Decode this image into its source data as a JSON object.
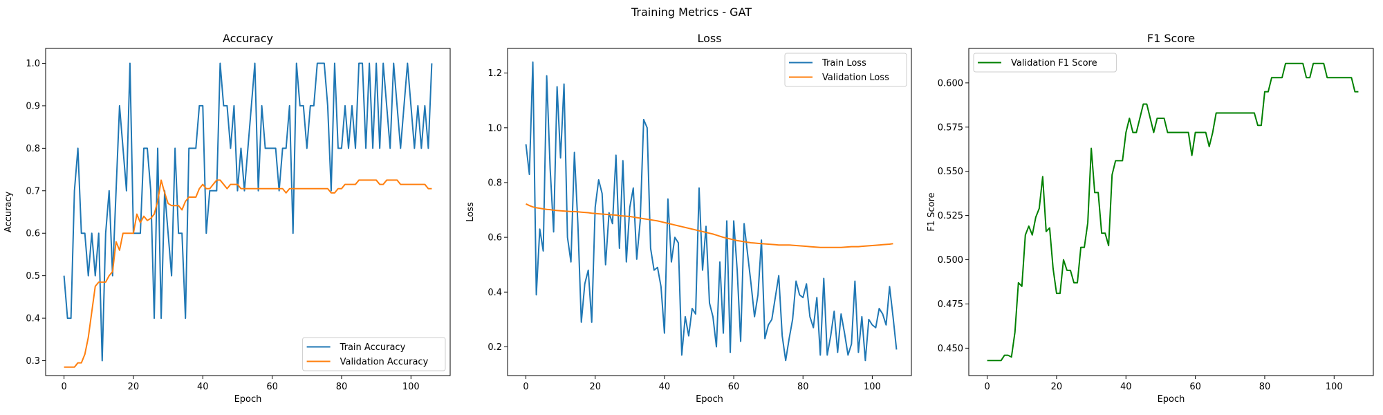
{
  "figure": {
    "title": "Training Metrics - GAT"
  },
  "colors": {
    "train": "#1f77b4",
    "validation": "#ff7f0e",
    "f1": "#008000"
  },
  "chart_data": [
    {
      "type": "line",
      "title": "Accuracy",
      "xlabel": "Epoch",
      "ylabel": "Accuracy",
      "xlim": [
        -5.3,
        111.3
      ],
      "ylim": [
        0.265,
        1.035
      ],
      "xticks": [
        0,
        20,
        40,
        60,
        80,
        100
      ],
      "yticks": [
        0.3,
        0.4,
        0.5,
        0.6,
        0.7,
        0.8,
        0.9,
        1.0
      ],
      "legend": "lower-right",
      "series": [
        {
          "name": "Train Accuracy",
          "color": "#1f77b4",
          "values": [
            0.5,
            0.4,
            0.4,
            0.7,
            0.8,
            0.6,
            0.6,
            0.5,
            0.6,
            0.5,
            0.6,
            0.3,
            0.6,
            0.7,
            0.5,
            0.7,
            0.9,
            0.8,
            0.7,
            1.0,
            0.6,
            0.6,
            0.6,
            0.8,
            0.8,
            0.7,
            0.4,
            0.8,
            0.4,
            0.7,
            0.6,
            0.5,
            0.8,
            0.6,
            0.6,
            0.4,
            0.8,
            0.8,
            0.8,
            0.9,
            0.9,
            0.6,
            0.7,
            0.7,
            0.7,
            1.0,
            0.9,
            0.9,
            0.8,
            0.9,
            0.7,
            0.8,
            0.7,
            0.8,
            0.9,
            1.0,
            0.7,
            0.9,
            0.8,
            0.8,
            0.8,
            0.8,
            0.7,
            0.8,
            0.8,
            0.9,
            0.6,
            1.0,
            0.9,
            0.9,
            0.8,
            0.9,
            0.9,
            1.0,
            1.0,
            1.0,
            0.9,
            0.7,
            1.0,
            0.8,
            0.8,
            0.9,
            0.8,
            0.9,
            0.8,
            1.0,
            1.0,
            0.8,
            1.0,
            0.8,
            1.0,
            0.8,
            1.0,
            0.9,
            0.8,
            1.0,
            0.9,
            0.8,
            0.9,
            1.0,
            0.9,
            0.8,
            0.9,
            0.8,
            0.9,
            0.8,
            1.0
          ]
        },
        {
          "name": "Validation Accuracy",
          "color": "#ff7f0e",
          "values": [
            0.285,
            0.285,
            0.285,
            0.285,
            0.295,
            0.295,
            0.315,
            0.355,
            0.415,
            0.475,
            0.485,
            0.485,
            0.485,
            0.5,
            0.51,
            0.58,
            0.56,
            0.6,
            0.6,
            0.6,
            0.6,
            0.645,
            0.625,
            0.64,
            0.63,
            0.635,
            0.645,
            0.675,
            0.725,
            0.695,
            0.67,
            0.665,
            0.665,
            0.665,
            0.655,
            0.675,
            0.685,
            0.685,
            0.685,
            0.705,
            0.715,
            0.705,
            0.705,
            0.715,
            0.725,
            0.725,
            0.715,
            0.705,
            0.715,
            0.715,
            0.715,
            0.705,
            0.705,
            0.705,
            0.705,
            0.705,
            0.705,
            0.705,
            0.705,
            0.705,
            0.705,
            0.705,
            0.705,
            0.705,
            0.695,
            0.705,
            0.705,
            0.705,
            0.705,
            0.705,
            0.705,
            0.705,
            0.705,
            0.705,
            0.705,
            0.705,
            0.705,
            0.695,
            0.695,
            0.705,
            0.705,
            0.715,
            0.715,
            0.715,
            0.715,
            0.725,
            0.725,
            0.725,
            0.725,
            0.725,
            0.725,
            0.715,
            0.715,
            0.725,
            0.725,
            0.725,
            0.725,
            0.715,
            0.715,
            0.715,
            0.715,
            0.715,
            0.715,
            0.715,
            0.715,
            0.705,
            0.705
          ]
        }
      ]
    },
    {
      "type": "line",
      "title": "Loss",
      "xlabel": "Epoch",
      "ylabel": "Loss",
      "xlim": [
        -5.3,
        111.3
      ],
      "ylim": [
        0.095,
        1.29
      ],
      "xticks": [
        0,
        20,
        40,
        60,
        80,
        100
      ],
      "yticks": [
        0.2,
        0.4,
        0.6,
        0.8,
        1.0,
        1.2
      ],
      "legend": "top-right",
      "series": [
        {
          "name": "Train Loss",
          "color": "#1f77b4",
          "values": [
            0.94,
            0.83,
            1.24,
            0.39,
            0.63,
            0.55,
            1.19,
            0.85,
            0.62,
            1.15,
            0.89,
            1.16,
            0.6,
            0.51,
            0.91,
            0.65,
            0.29,
            0.43,
            0.48,
            0.29,
            0.71,
            0.81,
            0.76,
            0.5,
            0.69,
            0.65,
            0.9,
            0.56,
            0.88,
            0.51,
            0.71,
            0.78,
            0.52,
            0.66,
            1.03,
            1.0,
            0.56,
            0.48,
            0.49,
            0.42,
            0.25,
            0.74,
            0.51,
            0.6,
            0.58,
            0.17,
            0.31,
            0.24,
            0.34,
            0.32,
            0.78,
            0.48,
            0.64,
            0.36,
            0.31,
            0.2,
            0.51,
            0.25,
            0.66,
            0.18,
            0.66,
            0.48,
            0.22,
            0.65,
            0.54,
            0.43,
            0.31,
            0.39,
            0.59,
            0.23,
            0.28,
            0.3,
            0.38,
            0.46,
            0.24,
            0.15,
            0.23,
            0.3,
            0.44,
            0.39,
            0.38,
            0.43,
            0.31,
            0.27,
            0.38,
            0.17,
            0.45,
            0.17,
            0.24,
            0.33,
            0.18,
            0.32,
            0.25,
            0.17,
            0.21,
            0.44,
            0.18,
            0.31,
            0.15,
            0.3,
            0.28,
            0.27,
            0.34,
            0.32,
            0.28,
            0.42,
            0.31,
            0.19
          ]
        },
        {
          "name": "Validation Loss",
          "color": "#ff7f0e",
          "values": [
            0.722,
            0.716,
            0.711,
            0.708,
            0.706,
            0.704,
            0.702,
            0.701,
            0.699,
            0.698,
            0.697,
            0.696,
            0.695,
            0.694,
            0.694,
            0.693,
            0.692,
            0.691,
            0.69,
            0.688,
            0.687,
            0.686,
            0.685,
            0.684,
            0.683,
            0.682,
            0.681,
            0.679,
            0.678,
            0.677,
            0.676,
            0.674,
            0.672,
            0.67,
            0.668,
            0.666,
            0.664,
            0.662,
            0.66,
            0.657,
            0.654,
            0.651,
            0.648,
            0.645,
            0.642,
            0.639,
            0.636,
            0.633,
            0.63,
            0.627,
            0.624,
            0.621,
            0.618,
            0.615,
            0.612,
            0.608,
            0.604,
            0.6,
            0.597,
            0.594,
            0.591,
            0.588,
            0.586,
            0.584,
            0.582,
            0.58,
            0.579,
            0.578,
            0.577,
            0.576,
            0.575,
            0.574,
            0.573,
            0.572,
            0.572,
            0.572,
            0.572,
            0.571,
            0.57,
            0.569,
            0.568,
            0.567,
            0.566,
            0.565,
            0.564,
            0.563,
            0.563,
            0.563,
            0.563,
            0.563,
            0.563,
            0.563,
            0.564,
            0.565,
            0.566,
            0.566,
            0.566,
            0.567,
            0.568,
            0.569,
            0.57,
            0.571,
            0.572,
            0.573,
            0.574,
            0.575,
            0.577
          ]
        }
      ]
    },
    {
      "type": "line",
      "title": "F1 Score",
      "xlabel": "Epoch",
      "ylabel": "F1 Score",
      "xlim": [
        -5.3,
        111.3
      ],
      "ylim": [
        0.4345,
        0.6195
      ],
      "xticks": [
        0,
        20,
        40,
        60,
        80,
        100
      ],
      "yticks": [
        0.45,
        0.475,
        0.5,
        0.525,
        0.55,
        0.575,
        0.6
      ],
      "legend": "top-left",
      "series": [
        {
          "name": "Validation F1 Score",
          "color": "#008000",
          "values": [
            0.443,
            0.443,
            0.443,
            0.443,
            0.443,
            0.446,
            0.446,
            0.445,
            0.459,
            0.487,
            0.485,
            0.514,
            0.519,
            0.514,
            0.524,
            0.529,
            0.547,
            0.516,
            0.518,
            0.495,
            0.481,
            0.481,
            0.5,
            0.494,
            0.494,
            0.487,
            0.487,
            0.507,
            0.507,
            0.521,
            0.563,
            0.538,
            0.538,
            0.515,
            0.515,
            0.508,
            0.548,
            0.556,
            0.556,
            0.556,
            0.572,
            0.58,
            0.572,
            0.572,
            0.58,
            0.588,
            0.588,
            0.58,
            0.572,
            0.58,
            0.58,
            0.58,
            0.572,
            0.572,
            0.572,
            0.572,
            0.572,
            0.572,
            0.572,
            0.559,
            0.572,
            0.572,
            0.572,
            0.572,
            0.564,
            0.572,
            0.583,
            0.583,
            0.583,
            0.583,
            0.583,
            0.583,
            0.583,
            0.583,
            0.583,
            0.583,
            0.583,
            0.583,
            0.576,
            0.576,
            0.595,
            0.595,
            0.603,
            0.603,
            0.603,
            0.603,
            0.611,
            0.611,
            0.611,
            0.611,
            0.611,
            0.611,
            0.603,
            0.603,
            0.611,
            0.611,
            0.611,
            0.611,
            0.603,
            0.603,
            0.603,
            0.603,
            0.603,
            0.603,
            0.603,
            0.603,
            0.595,
            0.595
          ]
        }
      ]
    }
  ]
}
